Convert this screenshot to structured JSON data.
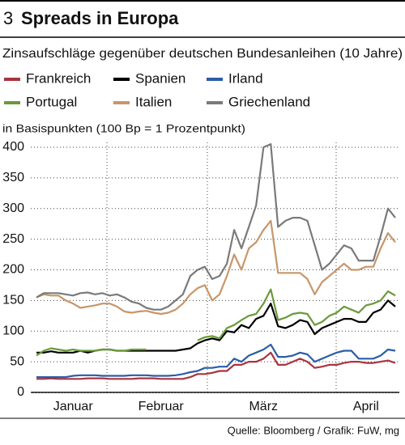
{
  "chart_data": {
    "type": "line",
    "chart_number": "3",
    "title": "Spreads in Europa",
    "subtitle": "Zinsaufschläge gegenüber deutschen Bundesanleihen (10 Jahre)",
    "y_label": "in Basispunkten (100 Bp = 1 Prozentpunkt)",
    "source": "Quelle: Bloomberg / Grafik: FuW, mg",
    "categories": [
      null,
      null,
      null,
      null,
      null,
      "Januar",
      null,
      null,
      null,
      null,
      null,
      null,
      null,
      null,
      null,
      null,
      null,
      "Februar",
      null,
      null,
      null,
      null,
      null,
      null,
      null,
      null,
      null,
      null,
      null,
      null,
      null,
      "März",
      null,
      null,
      null,
      null,
      null,
      null,
      null,
      null,
      null,
      null,
      null,
      null,
      null,
      "April",
      null,
      null,
      null,
      null
    ],
    "ylim": [
      0,
      410
    ],
    "yticks": [
      0,
      50,
      100,
      150,
      200,
      250,
      300,
      350,
      400
    ],
    "grid": true,
    "series": [
      {
        "name": "Frankreich",
        "color": "#a83440",
        "values": [
          22,
          22,
          23,
          22,
          22,
          22,
          22,
          23,
          23,
          23,
          22,
          22,
          22,
          22,
          23,
          23,
          23,
          22,
          22,
          22,
          22,
          25,
          30,
          30,
          32,
          35,
          35,
          45,
          45,
          50,
          50,
          55,
          65,
          45,
          45,
          50,
          55,
          50,
          40,
          42,
          45,
          45,
          48,
          50,
          50,
          48,
          48,
          50,
          52,
          48
        ]
      },
      {
        "name": "Spanien",
        "color": "#000000",
        "values": [
          65,
          65,
          67,
          65,
          65,
          65,
          68,
          65,
          68,
          70,
          70,
          68,
          68,
          68,
          68,
          68,
          68,
          68,
          68,
          68,
          70,
          72,
          80,
          85,
          88,
          85,
          100,
          98,
          110,
          105,
          120,
          125,
          145,
          108,
          105,
          110,
          118,
          115,
          95,
          105,
          110,
          115,
          120,
          120,
          115,
          115,
          130,
          135,
          150,
          140
        ]
      },
      {
        "name": "Irland",
        "color": "#2a5da8",
        "values": [
          25,
          25,
          25,
          25,
          25,
          27,
          28,
          28,
          28,
          27,
          27,
          27,
          27,
          28,
          28,
          28,
          27,
          27,
          27,
          28,
          30,
          33,
          35,
          40,
          40,
          42,
          42,
          55,
          50,
          60,
          65,
          70,
          78,
          58,
          58,
          60,
          65,
          62,
          50,
          55,
          60,
          65,
          68,
          68,
          55,
          55,
          55,
          60,
          70,
          68
        ]
      },
      {
        "name": "Portugal",
        "color": "#6a9a3a",
        "values": [
          60,
          68,
          72,
          70,
          68,
          70,
          68,
          68,
          68,
          70,
          70,
          68,
          68,
          70,
          70,
          70,
          null,
          null,
          null,
          null,
          null,
          null,
          85,
          90,
          92,
          88,
          105,
          110,
          118,
          125,
          128,
          145,
          168,
          118,
          122,
          128,
          130,
          128,
          110,
          115,
          125,
          130,
          140,
          135,
          130,
          142,
          145,
          150,
          165,
          158
        ]
      },
      {
        "name": "Italien",
        "color": "#c8966a",
        "values": [
          155,
          160,
          158,
          158,
          150,
          145,
          138,
          140,
          142,
          145,
          145,
          140,
          132,
          130,
          132,
          133,
          130,
          128,
          130,
          135,
          145,
          160,
          170,
          175,
          150,
          160,
          190,
          225,
          200,
          235,
          245,
          265,
          280,
          195,
          195,
          195,
          195,
          185,
          160,
          180,
          190,
          200,
          210,
          200,
          200,
          205,
          205,
          235,
          260,
          245
        ]
      },
      {
        "name": "Griechenland",
        "color": "#7a7a7a",
        "values": [
          155,
          162,
          162,
          162,
          160,
          158,
          162,
          163,
          160,
          162,
          158,
          160,
          155,
          148,
          145,
          138,
          135,
          135,
          140,
          150,
          160,
          190,
          200,
          205,
          185,
          190,
          210,
          265,
          235,
          270,
          305,
          400,
          405,
          270,
          280,
          285,
          285,
          280,
          240,
          200,
          210,
          225,
          240,
          235,
          215,
          215,
          215,
          255,
          300,
          285
        ]
      }
    ]
  }
}
